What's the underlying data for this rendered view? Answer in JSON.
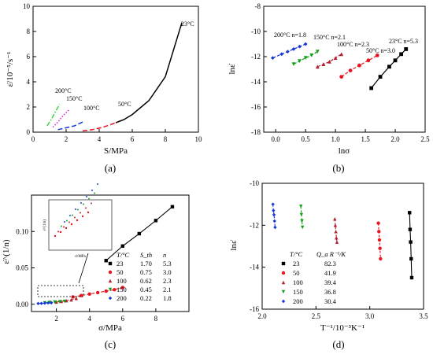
{
  "colors": {
    "c23": "#000000",
    "c50": "#e8141e",
    "c100": "#b0202e",
    "c150": "#12a018",
    "c200": "#1538d8"
  },
  "chart_data": [
    {
      "panel": "(a)",
      "type": "line",
      "xlabel": "S/MPa",
      "ylabel": "ε̇/10⁻⁵/s⁻¹",
      "xlim": [
        0,
        10
      ],
      "ylim": [
        0,
        10
      ],
      "xticks": [
        "0",
        "2",
        "4",
        "6",
        "8",
        "10"
      ],
      "yticks": [
        "0",
        "2",
        "4",
        "6",
        "8",
        "10"
      ],
      "series": [
        {
          "name": "23°C",
          "style": "solid",
          "color": "#000000",
          "x": [
            5.0,
            5.5,
            6.0,
            7.0,
            8.0,
            9.0
          ],
          "y": [
            0.75,
            1.0,
            1.4,
            2.5,
            4.4,
            8.7
          ]
        },
        {
          "name": "50°C",
          "style": "dashed",
          "color": "#e8141e",
          "x": [
            3.0,
            3.6,
            4.2,
            4.8,
            5.1
          ],
          "y": [
            0.1,
            0.2,
            0.38,
            0.65,
            0.8
          ]
        },
        {
          "name": "100°C",
          "style": "dashed",
          "color": "#1538d8",
          "x": [
            1.5,
            2.0,
            2.5,
            3.0
          ],
          "y": [
            0.2,
            0.35,
            0.5,
            0.8
          ]
        },
        {
          "name": "150°C",
          "style": "dotted",
          "color": "#e020d8",
          "x": [
            1.2,
            1.5,
            1.8,
            2.2
          ],
          "y": [
            0.4,
            0.8,
            1.3,
            1.8
          ]
        },
        {
          "name": "200°C",
          "style": "dashdot",
          "color": "#40d040",
          "x": [
            0.85,
            1.1,
            1.3,
            1.6
          ],
          "y": [
            0.5,
            1.0,
            1.5,
            2.2
          ]
        }
      ],
      "annotations": [
        "23°C",
        "50°C",
        "100°C",
        "150°C",
        "200°C"
      ]
    },
    {
      "panel": "(b)",
      "type": "scatter",
      "xlabel": "lnσ",
      "ylabel": "lnε̇",
      "xlim": [
        -0.2,
        2.5
      ],
      "ylim": [
        -18,
        -8
      ],
      "xticks": [
        "0.0",
        "0.5",
        "1.0",
        "1.5",
        "2.0",
        "2.5"
      ],
      "yticks": [
        "-8",
        "-10",
        "-12",
        "-14",
        "-16",
        "-18"
      ],
      "series": [
        {
          "name": "23°C",
          "color": "#000000",
          "x": [
            1.6,
            1.75,
            1.9,
            2.0,
            2.1,
            2.18
          ],
          "y": [
            -14.5,
            -13.6,
            -12.8,
            -12.3,
            -11.8,
            -11.4
          ]
        },
        {
          "name": "50°C",
          "color": "#e8141e",
          "x": [
            1.1,
            1.25,
            1.4,
            1.55,
            1.7
          ],
          "y": [
            -13.6,
            -13.1,
            -12.7,
            -12.3,
            -11.9
          ]
        },
        {
          "name": "100°C",
          "color": "#b0202e",
          "x": [
            0.7,
            0.8,
            0.9,
            1.0,
            1.1
          ],
          "y": [
            -12.8,
            -12.6,
            -12.4,
            -12.1,
            -11.8
          ]
        },
        {
          "name": "150°C",
          "color": "#12a018",
          "x": [
            0.3,
            0.4,
            0.5,
            0.6,
            0.7
          ],
          "y": [
            -12.6,
            -12.35,
            -12.1,
            -11.9,
            -11.6
          ]
        },
        {
          "name": "200°C",
          "color": "#1538d8",
          "x": [
            -0.05,
            0.1,
            0.2,
            0.3,
            0.4,
            0.5
          ],
          "y": [
            -12.1,
            -11.8,
            -11.6,
            -11.4,
            -11.2,
            -11.0
          ]
        }
      ],
      "annotations": [
        "200°C n=1.8",
        "150°C n=2.1",
        "100°C n=2.3",
        "50°C n=3.0",
        "23°C n=5.3"
      ]
    },
    {
      "panel": "(c)",
      "type": "scatter",
      "xlabel": "σ/MPa",
      "ylabel": "ε̇^(1/n)",
      "xlim": [
        0.5,
        10
      ],
      "ylim": [
        -0.01,
        0.15
      ],
      "xticks": [
        "2",
        "4",
        "6",
        "8"
      ],
      "yticks": [
        "0.00",
        "0.05",
        "0.10"
      ],
      "series": [
        {
          "name": "23",
          "color": "#000000",
          "x": [
            5.0,
            6.0,
            7.0,
            8.0,
            9.0
          ],
          "y": [
            0.06,
            0.08,
            0.097,
            0.115,
            0.134
          ]
        },
        {
          "name": "50",
          "color": "#e8141e",
          "x": [
            3.0,
            3.5,
            4.0,
            4.5,
            5.0,
            5.5,
            6.0
          ],
          "y": [
            0.01,
            0.012,
            0.014,
            0.016,
            0.018,
            0.02,
            0.023
          ]
        },
        {
          "name": "100",
          "color": "#b0202e",
          "x": [
            2.0,
            2.3,
            2.6,
            2.9,
            3.2
          ],
          "y": [
            0.003,
            0.004,
            0.005,
            0.006,
            0.008
          ]
        },
        {
          "name": "150",
          "color": "#12a018",
          "x": [
            1.3,
            1.6,
            1.9,
            2.2,
            2.5
          ],
          "y": [
            0.002,
            0.0025,
            0.003,
            0.0035,
            0.004
          ]
        },
        {
          "name": "200",
          "color": "#1538d8",
          "x": [
            0.9,
            1.1,
            1.3,
            1.5,
            1.7
          ],
          "y": [
            0.001,
            0.0012,
            0.0015,
            0.0018,
            0.002
          ]
        }
      ],
      "table": {
        "headers": [
          "T/°C",
          "S_th",
          "n"
        ],
        "rows": [
          [
            "23",
            "1.70",
            "5.3"
          ],
          [
            "50",
            "0.75",
            "3.0"
          ],
          [
            "100",
            "0.62",
            "2.3"
          ],
          [
            "150",
            "0.45",
            "2.1"
          ],
          [
            "200",
            "0.22",
            "1.8"
          ]
        ]
      },
      "inset": {
        "xlabel": "σ/MPa",
        "ylabel": "ε̇^(1/n)"
      }
    },
    {
      "panel": "(d)",
      "type": "scatter",
      "xlabel": "T⁻¹/10⁻³K⁻¹",
      "ylabel": "lnε̇",
      "xlim": [
        2.0,
        3.5
      ],
      "ylim": [
        -16,
        -10
      ],
      "xticks": [
        "2.0",
        "2.5",
        "3.0",
        "3.5"
      ],
      "yticks": [
        "-10",
        "-12",
        "-14",
        "-16"
      ],
      "series": [
        {
          "name": "23",
          "color": "#000000",
          "x": [
            3.37,
            3.375,
            3.38,
            3.385,
            3.39
          ],
          "y": [
            -11.4,
            -12.2,
            -12.8,
            -13.6,
            -14.5
          ]
        },
        {
          "name": "50",
          "color": "#e8141e",
          "x": [
            3.08,
            3.085,
            3.09,
            3.095,
            3.1
          ],
          "y": [
            -11.9,
            -12.3,
            -12.7,
            -13.1,
            -13.6
          ]
        },
        {
          "name": "100",
          "color": "#b0202e",
          "x": [
            2.675,
            2.68,
            2.685,
            2.69,
            2.695
          ],
          "y": [
            -11.7,
            -12.0,
            -12.3,
            -12.6,
            -12.8
          ]
        },
        {
          "name": "150",
          "color": "#12a018",
          "x": [
            2.36,
            2.365,
            2.37,
            2.375
          ],
          "y": [
            -11.1,
            -11.5,
            -11.8,
            -12.1
          ]
        },
        {
          "name": "200",
          "color": "#1538d8",
          "x": [
            2.1,
            2.105,
            2.11,
            2.115,
            2.12
          ],
          "y": [
            -11.0,
            -11.3,
            -11.5,
            -11.8,
            -12.1
          ]
        }
      ],
      "table": {
        "headers": [
          "T/°C",
          "Q_a R⁻¹/K"
        ],
        "rows": [
          [
            "23",
            "82.3"
          ],
          [
            "50",
            "41.9"
          ],
          [
            "100",
            "39.4"
          ],
          [
            "150",
            "36.8"
          ],
          [
            "200",
            "30.4"
          ]
        ]
      }
    }
  ]
}
